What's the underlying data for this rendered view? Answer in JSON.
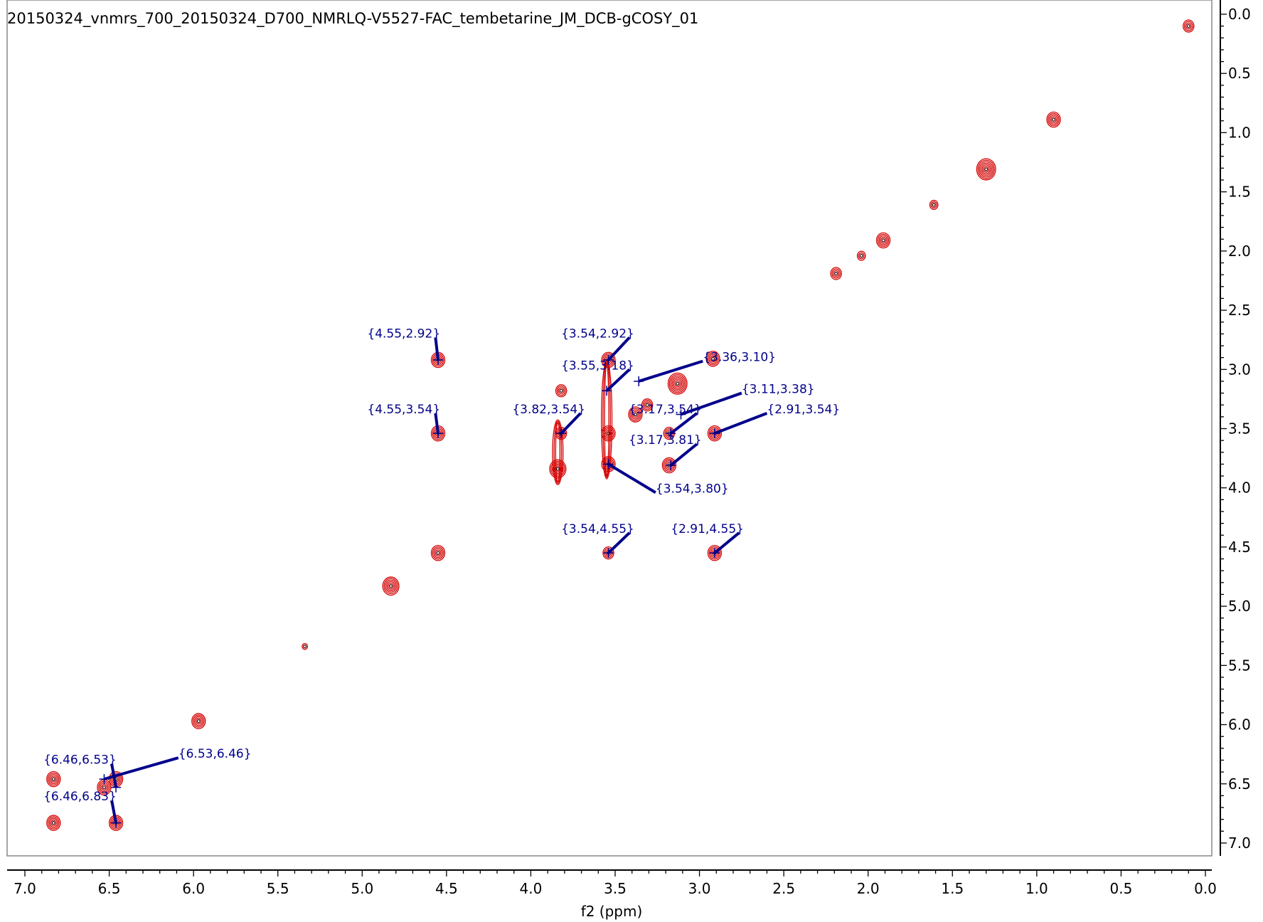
{
  "title": "20150324_vnmrs_700_20150324_D700_NMRLQ-V5527-FAC_tembetarine_JM_DCB-gCOSY_01",
  "colors": {
    "contour": "#d40000",
    "contour_inner": "#3a0000",
    "annotation": "#00008b",
    "frame": "#888888"
  },
  "chart_data": {
    "type": "scatter",
    "subtype": "2D NMR contour plot (gCOSY)",
    "title": "20150324_vnmrs_700_20150324_D700_NMRLQ-V5527-FAC_tembetarine_JM_DCB-gCOSY_01",
    "xlabel": "f2 (ppm)",
    "ylabel": "",
    "xlim": [
      7.15,
      -0.08
    ],
    "ylim": [
      -0.12,
      7.18
    ],
    "x_reversed": true,
    "y_increases_downward": true,
    "x_ticks": [
      "7.0",
      "6.5",
      "6.0",
      "5.5",
      "5.0",
      "4.5",
      "4.0",
      "3.5",
      "3.0",
      "2.5",
      "2.0",
      "1.5",
      "1.0",
      "0.5",
      "0.0"
    ],
    "y_ticks": [
      "0.0",
      "0.5",
      "1.0",
      "1.5",
      "2.0",
      "2.5",
      "3.0",
      "3.5",
      "4.0",
      "4.5",
      "5.0",
      "5.5",
      "6.0",
      "6.5",
      "7.0"
    ],
    "y_axis_side": "right",
    "grid": false,
    "peaks": [
      {
        "x": 0.1,
        "y": 0.1,
        "size": 1.0
      },
      {
        "x": 0.9,
        "y": 0.89,
        "size": 1.2
      },
      {
        "x": 1.3,
        "y": 1.31,
        "size": 1.7
      },
      {
        "x": 1.61,
        "y": 1.61,
        "size": 0.7
      },
      {
        "x": 1.91,
        "y": 1.91,
        "size": 1.3
      },
      {
        "x": 2.04,
        "y": 2.04,
        "size": 0.8
      },
      {
        "x": 2.19,
        "y": 2.19,
        "size": 0.9
      },
      {
        "x": 2.92,
        "y": 2.91,
        "size": 1.2
      },
      {
        "x": 3.13,
        "y": 3.12,
        "size": 1.8
      },
      {
        "x": 3.31,
        "y": 3.3,
        "size": 1.0
      },
      {
        "x": 3.38,
        "y": 3.38,
        "size": 1.3
      },
      {
        "x": 3.54,
        "y": 2.92,
        "size": 1.2
      },
      {
        "x": 3.54,
        "y": 3.54,
        "size": 1.3
      },
      {
        "x": 3.54,
        "y": 3.8,
        "size": 1.3
      },
      {
        "x": 3.54,
        "y": 4.55,
        "size": 1.1
      },
      {
        "x": 3.82,
        "y": 3.18,
        "size": 1.1
      },
      {
        "x": 3.82,
        "y": 3.54,
        "size": 1.1
      },
      {
        "x": 3.84,
        "y": 3.84,
        "size": 1.5
      },
      {
        "x": 3.18,
        "y": 3.54,
        "size": 1.1
      },
      {
        "x": 3.18,
        "y": 3.81,
        "size": 1.2
      },
      {
        "x": 2.91,
        "y": 3.54,
        "size": 1.3
      },
      {
        "x": 2.91,
        "y": 4.55,
        "size": 1.3
      },
      {
        "x": 4.55,
        "y": 2.92,
        "size": 1.3
      },
      {
        "x": 4.55,
        "y": 3.54,
        "size": 1.2
      },
      {
        "x": 4.55,
        "y": 4.55,
        "size": 1.2
      },
      {
        "x": 4.83,
        "y": 4.83,
        "size": 1.4
      },
      {
        "x": 5.34,
        "y": 5.34,
        "size": 0.6
      },
      {
        "x": 5.97,
        "y": 5.97,
        "size": 1.3
      },
      {
        "x": 6.46,
        "y": 6.46,
        "size": 1.2
      },
      {
        "x": 6.53,
        "y": 6.53,
        "size": 1.2
      },
      {
        "x": 6.46,
        "y": 6.83,
        "size": 1.2
      },
      {
        "x": 6.83,
        "y": 6.46,
        "size": 1.2
      },
      {
        "x": 6.83,
        "y": 6.83,
        "size": 1.3
      }
    ],
    "streaks": [
      {
        "x": 3.55,
        "y_from": 2.95,
        "y_to": 3.9
      },
      {
        "x": 3.84,
        "y_from": 3.45,
        "y_to": 3.95
      }
    ],
    "annotations": [
      {
        "text": "{4.55,2.92}",
        "x": 4.55,
        "y": 2.92,
        "label_x": 4.97,
        "label_y": 2.73
      },
      {
        "text": "{3.54,2.92}",
        "x": 3.54,
        "y": 2.92,
        "label_x": 3.82,
        "label_y": 2.73
      },
      {
        "text": "{3.36,3.10}",
        "x": 3.36,
        "y": 3.1,
        "label_x": 2.98,
        "label_y": 2.93
      },
      {
        "text": "{3.55,3.18}",
        "x": 3.55,
        "y": 3.18,
        "label_x": 3.82,
        "label_y": 3.0
      },
      {
        "text": "{3.11,3.38}",
        "x": 3.11,
        "y": 3.38,
        "label_x": 2.75,
        "label_y": 3.2
      },
      {
        "text": "{4.55,3.54}",
        "x": 4.55,
        "y": 3.54,
        "label_x": 4.97,
        "label_y": 3.37
      },
      {
        "text": "{3.82,3.54}",
        "x": 3.82,
        "y": 3.54,
        "label_x": 4.11,
        "label_y": 3.37
      },
      {
        "text": "{3.17,3.54}",
        "x": 3.17,
        "y": 3.54,
        "label_x": 3.42,
        "label_y": 3.37
      },
      {
        "text": "{2.91,3.54}",
        "x": 2.91,
        "y": 3.54,
        "label_x": 2.6,
        "label_y": 3.37
      },
      {
        "text": "{3.17,3.81}",
        "x": 3.17,
        "y": 3.81,
        "label_x": 3.42,
        "label_y": 3.63
      },
      {
        "text": "{3.54,3.80}",
        "x": 3.54,
        "y": 3.8,
        "label_x": 3.26,
        "label_y": 4.04
      },
      {
        "text": "{3.54,4.55}",
        "x": 3.54,
        "y": 4.55,
        "label_x": 3.82,
        "label_y": 4.38
      },
      {
        "text": "{2.91,4.55}",
        "x": 2.91,
        "y": 4.55,
        "label_x": 3.17,
        "label_y": 4.38
      },
      {
        "text": "{6.46,6.53}",
        "x": 6.46,
        "y": 6.53,
        "label_x": 6.89,
        "label_y": 6.33
      },
      {
        "text": "{6.53,6.46}",
        "x": 6.53,
        "y": 6.46,
        "label_x": 6.09,
        "label_y": 6.28
      },
      {
        "text": "{6.46,6.83}",
        "x": 6.46,
        "y": 6.83,
        "label_x": 6.89,
        "label_y": 6.64
      }
    ]
  }
}
